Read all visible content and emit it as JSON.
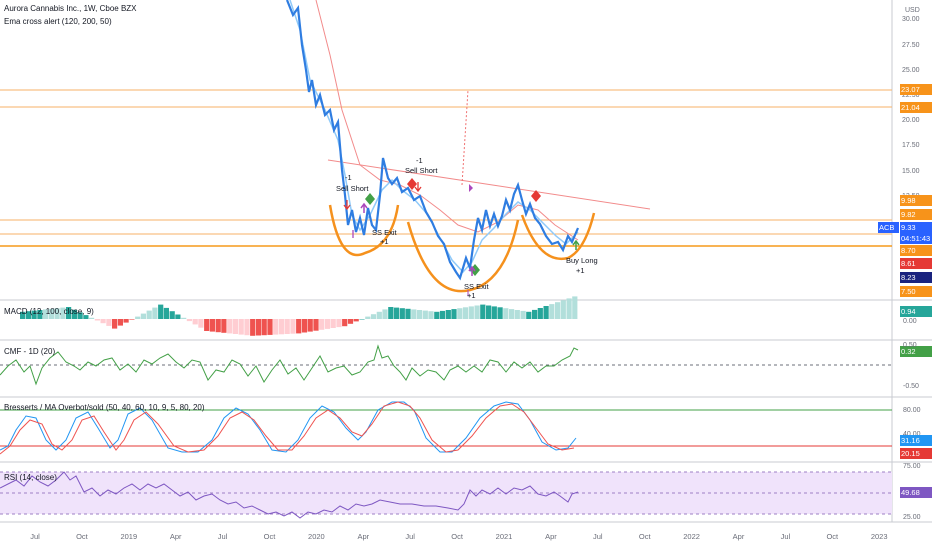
{
  "header": {
    "symbol_line": "Aurora Cannabis Inc., 1W, Cboe BZX",
    "indicator_line": "Ema cross alert (120, 200, 50)"
  },
  "currency": "USD",
  "price_scale": {
    "ticks": [
      "30.00",
      "27.50",
      "25.00",
      "22.50",
      "20.00",
      "17.50",
      "15.00",
      "12.50"
    ]
  },
  "price_tags": [
    {
      "text": "23.07",
      "bg": "#f7931a"
    },
    {
      "text": "21.04",
      "bg": "#f7931a"
    },
    {
      "text": "9.98",
      "bg": "#f7931a"
    },
    {
      "text": "9.82",
      "bg": "#f7931a"
    },
    {
      "text": "9.33",
      "bg": "#2962ff"
    },
    {
      "text": "04:51:43",
      "bg": "#2962ff"
    },
    {
      "text": "8.70",
      "bg": "#f7931a"
    },
    {
      "text": "8.61",
      "bg": "#e53935"
    },
    {
      "text": "8.23",
      "bg": "#1a237e"
    },
    {
      "text": "7.50",
      "bg": "#f7931a"
    }
  ],
  "ticker_badge": "ACB",
  "annotations": {
    "sell_short_1": "Sell Short",
    "minus1_a": "-1",
    "sell_short_2": "Sell Short",
    "minus1_b": "-1",
    "ss_exit_1": "SS Exit",
    "plus1_a": "+1",
    "ss_exit_2": "SS Exit",
    "plus1_b": "+1",
    "buy_long": "Buy Long",
    "plus1_c": "+1"
  },
  "panes": {
    "macd": {
      "title": "MACD (12, 100, close, 9)",
      "tag": "0.94",
      "tag_bg": "#26a69a",
      "ticks": [
        "0.00"
      ]
    },
    "cmf": {
      "title": "CMF - 1D (20)",
      "tag": "0.32",
      "tag_bg": "#43a047",
      "ticks": [
        "0.50",
        "-0.50"
      ]
    },
    "bresserts": {
      "title": "Bresserts / MA Overbot/sold (50, 40, 60, 10, 9, 5, 80, 20)",
      "tag1": "31.16",
      "tag1_bg": "#2196f3",
      "tag2": "20.15",
      "tag2_bg": "#e53935",
      "ticks": [
        "80.00",
        "40.00"
      ]
    },
    "rsi": {
      "title": "RSI (14, close)",
      "tag": "49.68",
      "tag_bg": "#7e57c2",
      "ticks": [
        "75.00",
        "25.00"
      ]
    }
  },
  "time_axis": [
    "Jul",
    "Oct",
    "2019",
    "Apr",
    "Jul",
    "Oct",
    "2020",
    "Apr",
    "Jul",
    "Oct",
    "2021",
    "Apr",
    "Jul",
    "Oct",
    "2022",
    "Apr",
    "Jul",
    "Oct",
    "2023"
  ],
  "chart_data": [
    {
      "type": "line",
      "title": "Aurora Cannabis Inc., 1W, Cboe BZX",
      "ylabel": "USD",
      "ylim": [
        6.5,
        33
      ],
      "horizontal_levels": [
        23.07,
        21.04,
        9.98,
        9.82,
        8.7,
        7.5
      ],
      "last_price": 9.33,
      "series": [
        {
          "name": "",
          "color": "#2962ff",
          "x": [
            "2019-12",
            "2020-01",
            "2020-02",
            "2020-03",
            "2020-04",
            "2020-05",
            "2020-06",
            "2020-07",
            "2020-08",
            "2020-09",
            "2020-10",
            "2020-11",
            "2020-12",
            "2021-01",
            "2021-02",
            "2021-03",
            "2021-04",
            "2021-05",
            "2021-06"
          ],
          "y": [
            32,
            25,
            20,
            10,
            8.3,
            13.5,
            12.3,
            11.5,
            10.0,
            8.6,
            6.9,
            9.4,
            10.0,
            11.4,
            13.2,
            10.3,
            8.9,
            8.3,
            9.33
          ]
        }
      ]
    },
    {
      "type": "bar",
      "title": "MACD (12, 100, close, 9)",
      "x": [
        "2018-07",
        "2018-10",
        "2019-01",
        "2019-04",
        "2019-07",
        "2019-10",
        "2020-01",
        "2020-04",
        "2020-07",
        "2020-10",
        "2021-01",
        "2021-04",
        "2021-06"
      ],
      "values": [
        0.3,
        0.5,
        -0.4,
        0.6,
        -0.5,
        -0.7,
        -0.6,
        -0.3,
        0.5,
        0.3,
        0.6,
        0.3,
        0.94
      ]
    },
    {
      "type": "line",
      "title": "CMF - 1D (20)",
      "ylim": [
        -0.6,
        0.6
      ],
      "series": [
        {
          "name": "",
          "values": [
            0.1,
            -0.3,
            0.2,
            0.1,
            0.0,
            -0.1,
            0.1,
            0.0,
            0.4,
            0.0,
            0.1,
            0.0,
            0.32
          ]
        }
      ]
    },
    {
      "type": "line",
      "title": "Bresserts / MA Overbot/sold (50, 40, 60, 10, 9, 5, 80, 20)",
      "ylim": [
        10,
        90
      ],
      "series": [
        {
          "name": "",
          "values": [
            20,
            75,
            30,
            80,
            20,
            70,
            30,
            85,
            20,
            85,
            25,
            90,
            31.16
          ]
        },
        {
          "name": "",
          "values": [
            25,
            70,
            35,
            75,
            25,
            65,
            35,
            80,
            25,
            80,
            30,
            85,
            20.15
          ]
        }
      ]
    },
    {
      "type": "line",
      "title": "RSI (14, close)",
      "ylim": [
        15,
        85
      ],
      "series": [
        {
          "name": "",
          "values": [
            60,
            80,
            55,
            60,
            40,
            30,
            25,
            20,
            50,
            30,
            55,
            45,
            49.68
          ]
        }
      ]
    }
  ]
}
